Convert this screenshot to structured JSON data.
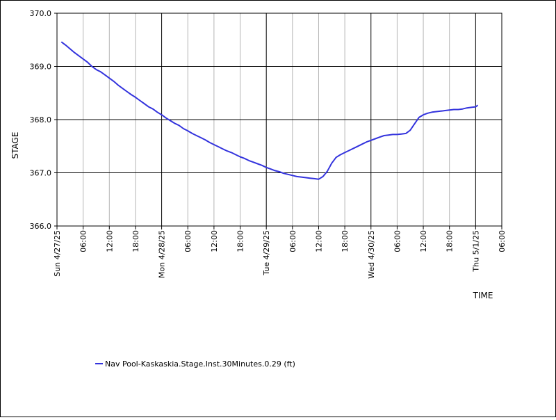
{
  "chart_data": {
    "type": "line",
    "title": "",
    "xlabel": "TIME",
    "ylabel": "STAGE",
    "ylim": [
      366.0,
      370.0
    ],
    "y_ticks": [
      "366.0",
      "367.0",
      "368.0",
      "369.0",
      "370.0"
    ],
    "x_range_hours": [
      0,
      102
    ],
    "x_major_ticks": [
      {
        "h": 0,
        "label": "Sun 4/27/25"
      },
      {
        "h": 24,
        "label": "Mon 4/28/25"
      },
      {
        "h": 48,
        "label": "Tue 4/29/25"
      },
      {
        "h": 72,
        "label": "Wed 4/30/25"
      },
      {
        "h": 96,
        "label": "Thu 5/1/25"
      }
    ],
    "x_minor_ticks": [
      {
        "h": 6,
        "label": "06:00"
      },
      {
        "h": 12,
        "label": "12:00"
      },
      {
        "h": 18,
        "label": "18:00"
      },
      {
        "h": 30,
        "label": "06:00"
      },
      {
        "h": 36,
        "label": "12:00"
      },
      {
        "h": 42,
        "label": "18:00"
      },
      {
        "h": 54,
        "label": "06:00"
      },
      {
        "h": 60,
        "label": "12:00"
      },
      {
        "h": 66,
        "label": "18:00"
      },
      {
        "h": 78,
        "label": "06:00"
      },
      {
        "h": 84,
        "label": "12:00"
      },
      {
        "h": 90,
        "label": "18:00"
      },
      {
        "h": 102,
        "label": "06:00"
      }
    ],
    "grid": true,
    "legend_position": "bottom",
    "series": [
      {
        "name": "Nav Pool-Kaskaskia.Stage.Inst.30Minutes.0.29 (ft)",
        "color": "#3333dd",
        "points": [
          [
            1.0,
            369.46
          ],
          [
            2.0,
            369.4
          ],
          [
            3.0,
            369.33
          ],
          [
            4.0,
            369.26
          ],
          [
            5.0,
            369.2
          ],
          [
            6.0,
            369.14
          ],
          [
            7.0,
            369.08
          ],
          [
            8.0,
            369.0
          ],
          [
            9.0,
            368.94
          ],
          [
            10.0,
            368.9
          ],
          [
            11.0,
            368.84
          ],
          [
            12.0,
            368.78
          ],
          [
            13.0,
            368.72
          ],
          [
            14.0,
            368.65
          ],
          [
            15.0,
            368.59
          ],
          [
            16.0,
            368.53
          ],
          [
            17.0,
            368.47
          ],
          [
            18.0,
            368.42
          ],
          [
            19.0,
            368.36
          ],
          [
            20.0,
            368.3
          ],
          [
            21.0,
            368.24
          ],
          [
            22.0,
            368.2
          ],
          [
            23.0,
            368.14
          ],
          [
            24.0,
            368.09
          ],
          [
            25.0,
            368.03
          ],
          [
            26.0,
            367.98
          ],
          [
            27.0,
            367.93
          ],
          [
            28.0,
            367.89
          ],
          [
            29.0,
            367.83
          ],
          [
            30.0,
            367.79
          ],
          [
            31.0,
            367.74
          ],
          [
            32.0,
            367.7
          ],
          [
            33.0,
            367.66
          ],
          [
            34.0,
            367.62
          ],
          [
            35.0,
            367.57
          ],
          [
            36.0,
            367.53
          ],
          [
            37.0,
            367.49
          ],
          [
            38.0,
            367.45
          ],
          [
            39.0,
            367.41
          ],
          [
            40.0,
            367.38
          ],
          [
            41.0,
            367.34
          ],
          [
            42.0,
            367.3
          ],
          [
            43.0,
            367.27
          ],
          [
            44.0,
            367.23
          ],
          [
            45.0,
            367.2
          ],
          [
            46.0,
            367.17
          ],
          [
            47.0,
            367.14
          ],
          [
            48.0,
            367.1
          ],
          [
            49.0,
            367.07
          ],
          [
            50.0,
            367.04
          ],
          [
            51.0,
            367.02
          ],
          [
            52.0,
            366.99
          ],
          [
            53.0,
            366.97
          ],
          [
            54.0,
            366.95
          ],
          [
            55.0,
            366.93
          ],
          [
            56.0,
            366.92
          ],
          [
            57.0,
            366.91
          ],
          [
            58.0,
            366.9
          ],
          [
            59.0,
            366.89
          ],
          [
            60.0,
            366.88
          ],
          [
            61.0,
            366.93
          ],
          [
            62.0,
            367.03
          ],
          [
            63.0,
            367.18
          ],
          [
            64.0,
            367.29
          ],
          [
            65.0,
            367.34
          ],
          [
            66.0,
            367.38
          ],
          [
            67.0,
            367.42
          ],
          [
            68.0,
            367.46
          ],
          [
            69.0,
            367.5
          ],
          [
            70.0,
            367.54
          ],
          [
            71.0,
            367.58
          ],
          [
            72.0,
            367.61
          ],
          [
            73.0,
            367.64
          ],
          [
            74.0,
            367.67
          ],
          [
            75.0,
            367.7
          ],
          [
            76.0,
            367.71
          ],
          [
            77.0,
            367.72
          ],
          [
            78.0,
            367.72
          ],
          [
            79.0,
            367.73
          ],
          [
            80.0,
            367.74
          ],
          [
            81.0,
            367.8
          ],
          [
            82.0,
            367.92
          ],
          [
            83.0,
            368.04
          ],
          [
            84.0,
            368.09
          ],
          [
            85.0,
            368.12
          ],
          [
            86.0,
            368.14
          ],
          [
            87.0,
            368.15
          ],
          [
            88.0,
            368.16
          ],
          [
            89.0,
            368.17
          ],
          [
            90.0,
            368.18
          ],
          [
            91.0,
            368.19
          ],
          [
            92.0,
            368.19
          ],
          [
            93.0,
            368.2
          ],
          [
            94.0,
            368.22
          ],
          [
            95.0,
            368.23
          ],
          [
            96.0,
            368.24
          ],
          [
            96.5,
            368.27
          ]
        ]
      }
    ]
  }
}
